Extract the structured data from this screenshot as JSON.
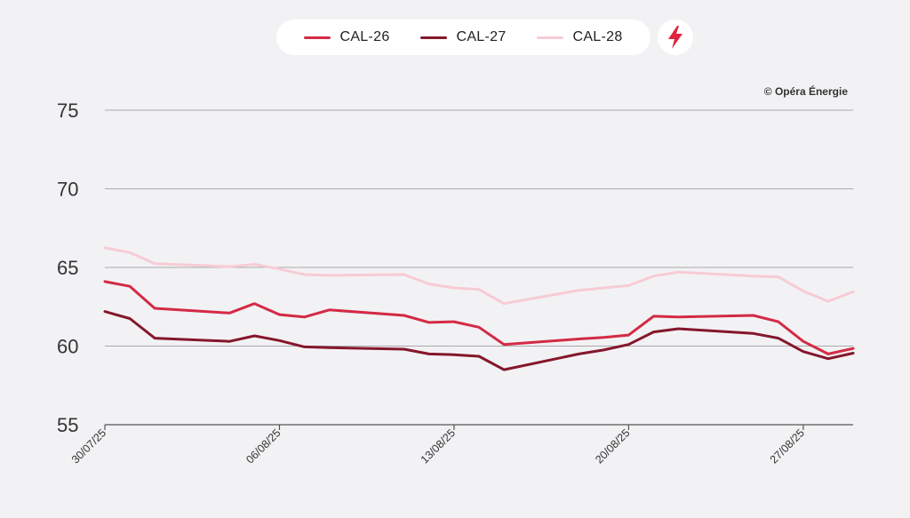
{
  "legend": {
    "items": [
      {
        "label": "CAL-26",
        "color": "#d42a45"
      },
      {
        "label": "CAL-27",
        "color": "#85172b"
      },
      {
        "label": "CAL-28",
        "color": "#f7ccd4"
      }
    ],
    "icon": "lightning-bolt-icon",
    "icon_color": "#e0233f"
  },
  "copyright": "© Opéra Énergie",
  "chart_data": {
    "type": "line",
    "x_dates": [
      "30/07/25",
      "31/07/25",
      "01/08/25",
      "04/08/25",
      "05/08/25",
      "06/08/25",
      "07/08/25",
      "08/08/25",
      "11/08/25",
      "12/08/25",
      "13/08/25",
      "14/08/25",
      "15/08/25",
      "18/08/25",
      "19/08/25",
      "20/08/25",
      "21/08/25",
      "22/08/25",
      "25/08/25",
      "26/08/25",
      "27/08/25",
      "28/08/25",
      "29/08/25"
    ],
    "x_day_index": [
      0,
      1,
      2,
      5,
      6,
      7,
      8,
      9,
      12,
      13,
      14,
      15,
      16,
      19,
      20,
      21,
      22,
      23,
      26,
      27,
      28,
      29,
      30
    ],
    "series": [
      {
        "name": "CAL-26",
        "values": [
          64.1,
          63.8,
          62.4,
          62.1,
          62.7,
          62.0,
          61.85,
          62.3,
          61.95,
          61.5,
          61.55,
          61.2,
          60.1,
          60.45,
          60.55,
          60.7,
          61.9,
          61.85,
          61.95,
          61.55,
          60.3,
          59.5,
          59.85
        ]
      },
      {
        "name": "CAL-27",
        "values": [
          62.2,
          61.75,
          60.5,
          60.3,
          60.65,
          60.35,
          59.95,
          59.9,
          59.8,
          59.5,
          59.45,
          59.35,
          58.5,
          59.5,
          59.75,
          60.1,
          60.9,
          61.1,
          60.8,
          60.5,
          59.65,
          59.2,
          59.55
        ]
      },
      {
        "name": "CAL-28",
        "values": [
          66.25,
          65.95,
          65.25,
          65.05,
          65.2,
          64.9,
          64.55,
          64.5,
          64.55,
          63.95,
          63.7,
          63.6,
          62.7,
          63.55,
          63.7,
          63.85,
          64.45,
          64.7,
          64.45,
          64.4,
          63.5,
          62.85,
          63.45
        ]
      }
    ],
    "yticks": [
      "75",
      "70",
      "65",
      "60",
      "55"
    ],
    "ytick_values": [
      75,
      70,
      65,
      60,
      55
    ],
    "xtick_labels": [
      "30/07/25",
      "06/08/25",
      "13/08/25",
      "20/08/25",
      "27/08/25"
    ],
    "xtick_day_index": [
      0,
      7,
      14,
      21,
      28
    ],
    "ylim": [
      55,
      75
    ],
    "xlim_days": [
      0,
      30
    ],
    "title": "",
    "xlabel": "",
    "ylabel": "",
    "grid": "horizontal"
  }
}
